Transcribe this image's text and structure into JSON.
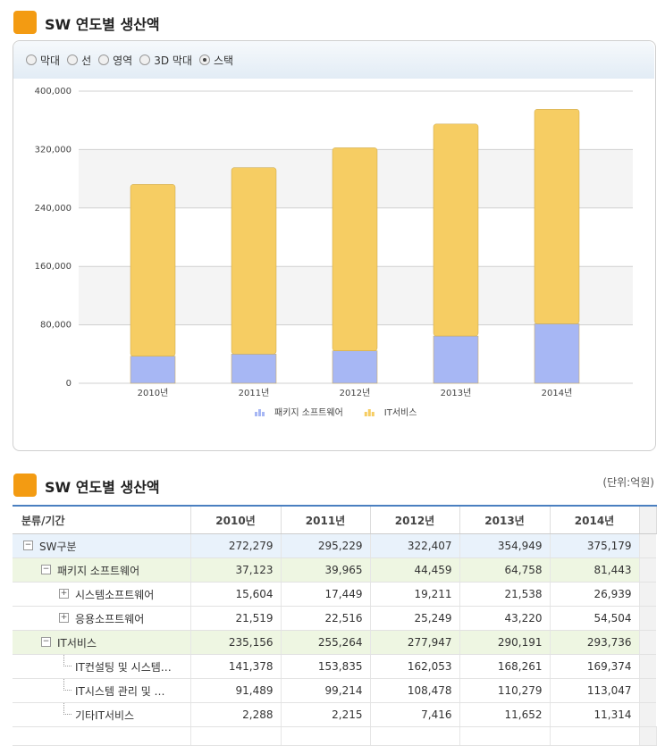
{
  "header": {
    "title": "SW 연도별 생산액"
  },
  "chart_options": {
    "items": [
      "막대",
      "선",
      "영역",
      "3D 막대",
      "스택"
    ],
    "selected": 4
  },
  "chart_data": {
    "type": "stacked_bar",
    "categories": [
      "2010년",
      "2011년",
      "2012년",
      "2013년",
      "2014년"
    ],
    "series": [
      {
        "name": "패키지 소프트웨어",
        "color": "#a7b7f4",
        "values": [
          37123,
          39965,
          44459,
          64758,
          81443
        ]
      },
      {
        "name": "IT서비스",
        "color": "#f6cd63",
        "values": [
          235156,
          255264,
          277947,
          290191,
          293736
        ]
      }
    ],
    "ylim": [
      0,
      400000
    ],
    "yticks": [
      0,
      {
        "value": 80000,
        "label": "80,000"
      },
      {
        "value": 160000,
        "label": "160,000"
      },
      {
        "value": 240000,
        "label": "240,000"
      },
      {
        "value": 320000,
        "label": "320,000"
      },
      {
        "value": 400000,
        "label": "400,000"
      }
    ],
    "grid": true
  },
  "table": {
    "title": "SW 연도별 생산액",
    "unit": "(단위:억원)",
    "columns": [
      "분류/기간",
      "2010년",
      "2011년",
      "2012년",
      "2013년",
      "2014년"
    ],
    "rows": [
      {
        "label": "SW구분",
        "level": 0,
        "state": "expanded",
        "values": [
          "272,279",
          "295,229",
          "322,407",
          "354,949",
          "375,179"
        ]
      },
      {
        "label": "패키지 소프트웨어",
        "level": 1,
        "state": "expanded",
        "values": [
          "37,123",
          "39,965",
          "44,459",
          "64,758",
          "81,443"
        ]
      },
      {
        "label": "시스템소프트웨어",
        "level": 2,
        "state": "collapsed",
        "values": [
          "15,604",
          "17,449",
          "19,211",
          "21,538",
          "26,939"
        ]
      },
      {
        "label": "응용소프트웨어",
        "level": 2,
        "state": "collapsed",
        "values": [
          "21,519",
          "22,516",
          "25,249",
          "43,220",
          "54,504"
        ]
      },
      {
        "label": "IT서비스",
        "level": 1,
        "state": "expanded",
        "values": [
          "235,156",
          "255,264",
          "277,947",
          "290,191",
          "293,736"
        ]
      },
      {
        "label": "IT컨설팅 및 시스템…",
        "level": 2,
        "state": "leaf",
        "values": [
          "141,378",
          "153,835",
          "162,053",
          "168,261",
          "169,374"
        ]
      },
      {
        "label": "IT시스템 관리 및 …",
        "level": 2,
        "state": "leaf",
        "values": [
          "91,489",
          "99,214",
          "108,478",
          "110,279",
          "113,047"
        ]
      },
      {
        "label": "기타IT서비스",
        "level": 2,
        "state": "leaf",
        "values": [
          "2,288",
          "2,215",
          "7,416",
          "11,652",
          "11,314"
        ]
      }
    ]
  }
}
